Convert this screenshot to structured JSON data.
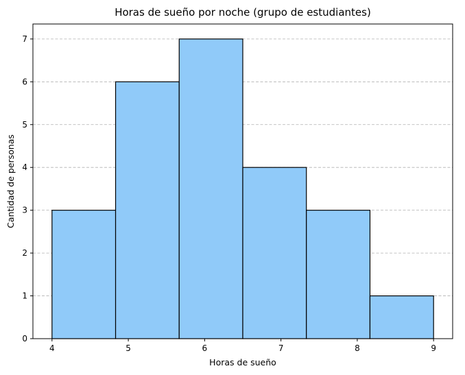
{
  "chart_data": {
    "type": "bar",
    "title": "Horas de sueño por noche (grupo de estudiantes)",
    "xlabel": "Horas de sueño",
    "ylabel": "Cantidad de personas",
    "bins": [
      {
        "start": 4.0,
        "end": 4.8333,
        "count": 3
      },
      {
        "start": 4.8333,
        "end": 5.6667,
        "count": 6
      },
      {
        "start": 5.6667,
        "end": 6.5,
        "count": 7
      },
      {
        "start": 6.5,
        "end": 7.3333,
        "count": 4
      },
      {
        "start": 7.3333,
        "end": 8.1667,
        "count": 3
      },
      {
        "start": 8.1667,
        "end": 9.0,
        "count": 1
      }
    ],
    "xlim": [
      3.75,
      9.25
    ],
    "ylim": [
      0,
      7.35
    ],
    "xticks": [
      "4",
      "5",
      "6",
      "7",
      "8",
      "9"
    ],
    "yticks": [
      "0",
      "1",
      "2",
      "3",
      "4",
      "5",
      "6",
      "7"
    ],
    "grid": "horizontal dashed",
    "bar_color": "#90CAF9",
    "edge_color": "#000000",
    "grid_color": "#b0b0b0"
  }
}
